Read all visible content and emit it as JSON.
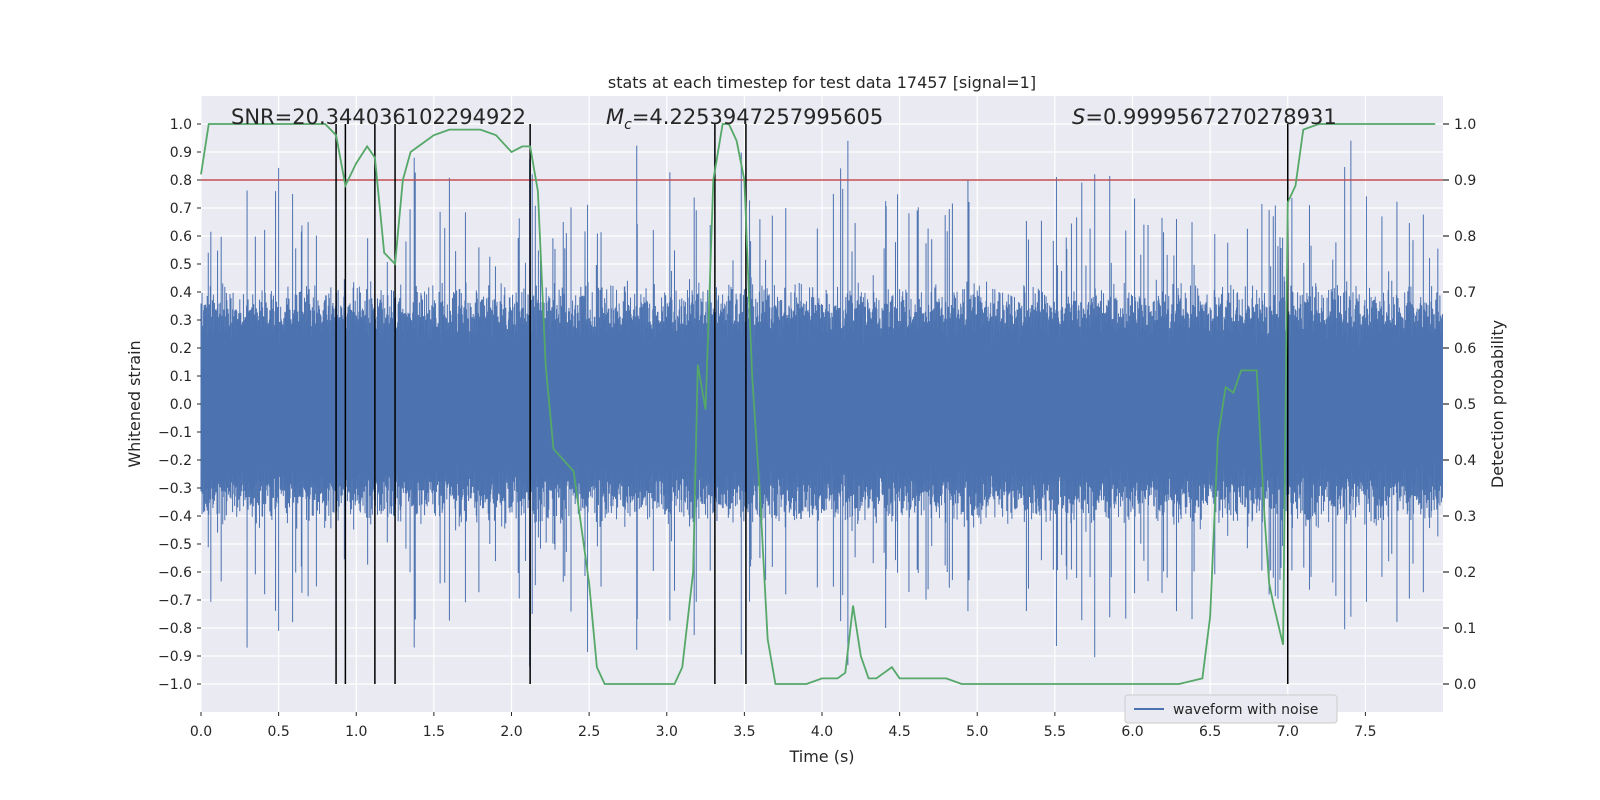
{
  "chart_data": {
    "type": "line",
    "title": "stats at each timestep for test data 17457 [signal=1]",
    "xlabel": "Time (s)",
    "ylabel": "Whitened strain",
    "ylabel_right": "Detection probability",
    "xlim": [
      0.0,
      8.0
    ],
    "ylim": [
      -1.1,
      1.1
    ],
    "ylim_right": [
      -0.05,
      1.05
    ],
    "x_ticks": [
      0.0,
      0.5,
      1.0,
      1.5,
      2.0,
      2.5,
      3.0,
      3.5,
      4.0,
      4.5,
      5.0,
      5.5,
      6.0,
      6.5,
      7.0,
      7.5
    ],
    "x_tick_labels": [
      "0.0",
      "0.5",
      "1.0",
      "1.5",
      "2.0",
      "2.5",
      "3.0",
      "3.5",
      "4.0",
      "4.5",
      "5.0",
      "5.5",
      "6.0",
      "6.5",
      "7.0",
      "7.5"
    ],
    "y_ticks": [
      1.0,
      0.9,
      0.8,
      0.7,
      0.6,
      0.5,
      0.4,
      0.3,
      0.2,
      0.1,
      0.0,
      -0.1,
      -0.2,
      -0.3,
      -0.4,
      -0.5,
      -0.6,
      -0.7,
      -0.8,
      -0.9,
      -1.0
    ],
    "y_tick_labels": [
      "1.0",
      "0.9",
      "0.8",
      "0.7",
      "0.6",
      "0.5",
      "0.4",
      "0.3",
      "0.2",
      "0.1",
      "0.0",
      "−0.1",
      "−0.2",
      "−0.3",
      "−0.4",
      "−0.5",
      "−0.6",
      "−0.7",
      "−0.8",
      "−0.9",
      "−1.0"
    ],
    "y_right_ticks": [
      1.0,
      0.9,
      0.8,
      0.7,
      0.6,
      0.5,
      0.4,
      0.3,
      0.2,
      0.1,
      0.0
    ],
    "y_right_tick_labels": [
      "1.0",
      "0.9",
      "0.8",
      "0.7",
      "0.6",
      "0.5",
      "0.4",
      "0.3",
      "0.2",
      "0.1",
      "0.0"
    ],
    "annotations": {
      "snr": "SNR=20.344036102294922",
      "mc": "=4.2253947257995605",
      "mc_symbol": "M",
      "mc_sub": "c",
      "s": "=0.9999567270278931",
      "s_symbol": "S"
    },
    "threshold_right": 0.9,
    "vertical_lines_x": [
      0.87,
      0.93,
      1.12,
      1.25,
      2.12,
      3.31,
      3.51,
      7.0
    ],
    "legend": [
      {
        "label": "waveform with noise",
        "color": "#4c72b0"
      }
    ],
    "waveform": {
      "name": "waveform with noise",
      "duration": 8.0,
      "typical_amplitude": 0.45,
      "max_amplitude": 1.0
    },
    "series": [
      {
        "name": "Detection probability",
        "axis": "right",
        "color": "#55a868",
        "x": [
          0.0,
          0.05,
          0.1,
          0.2,
          0.3,
          0.4,
          0.5,
          0.6,
          0.7,
          0.8,
          0.87,
          0.93,
          1.0,
          1.07,
          1.12,
          1.18,
          1.25,
          1.3,
          1.35,
          1.4,
          1.5,
          1.6,
          1.7,
          1.8,
          1.9,
          2.0,
          2.07,
          2.12,
          2.17,
          2.22,
          2.27,
          2.4,
          2.5,
          2.55,
          2.6,
          2.7,
          2.8,
          2.9,
          3.0,
          3.05,
          3.1,
          3.17,
          3.2,
          3.25,
          3.3,
          3.36,
          3.4,
          3.45,
          3.5,
          3.55,
          3.6,
          3.65,
          3.7,
          3.75,
          3.8,
          3.9,
          4.0,
          4.1,
          4.15,
          4.2,
          4.25,
          4.3,
          4.35,
          4.4,
          4.45,
          4.5,
          4.55,
          4.6,
          4.65,
          4.7,
          4.8,
          4.9,
          5.0,
          5.1,
          5.2,
          5.5,
          5.8,
          6.0,
          6.1,
          6.2,
          6.3,
          6.45,
          6.5,
          6.55,
          6.6,
          6.65,
          6.7,
          6.75,
          6.8,
          6.85,
          6.88,
          6.91,
          6.97,
          7.0,
          7.05,
          7.1,
          7.2,
          7.5,
          7.7,
          7.95
        ],
        "y": [
          0.91,
          1.0,
          1.0,
          1.0,
          1.0,
          1.0,
          1.0,
          1.0,
          1.0,
          1.0,
          0.98,
          0.89,
          0.93,
          0.96,
          0.94,
          0.77,
          0.75,
          0.9,
          0.95,
          0.96,
          0.98,
          0.99,
          0.99,
          0.99,
          0.98,
          0.95,
          0.96,
          0.96,
          0.88,
          0.57,
          0.42,
          0.38,
          0.18,
          0.03,
          0.0,
          0.0,
          0.0,
          0.0,
          0.0,
          0.0,
          0.03,
          0.2,
          0.57,
          0.49,
          0.9,
          1.0,
          1.0,
          0.97,
          0.9,
          0.55,
          0.34,
          0.08,
          0.0,
          0.0,
          0.0,
          0.0,
          0.01,
          0.01,
          0.02,
          0.14,
          0.05,
          0.01,
          0.01,
          0.02,
          0.03,
          0.01,
          0.01,
          0.01,
          0.01,
          0.01,
          0.01,
          0.0,
          0.0,
          0.0,
          0.0,
          0.0,
          0.0,
          0.0,
          0.0,
          0.0,
          0.0,
          0.01,
          0.12,
          0.44,
          0.53,
          0.52,
          0.56,
          0.56,
          0.56,
          0.3,
          0.18,
          0.14,
          0.07,
          0.86,
          0.89,
          0.99,
          1.0,
          1.0,
          1.0,
          1.0
        ]
      }
    ]
  }
}
